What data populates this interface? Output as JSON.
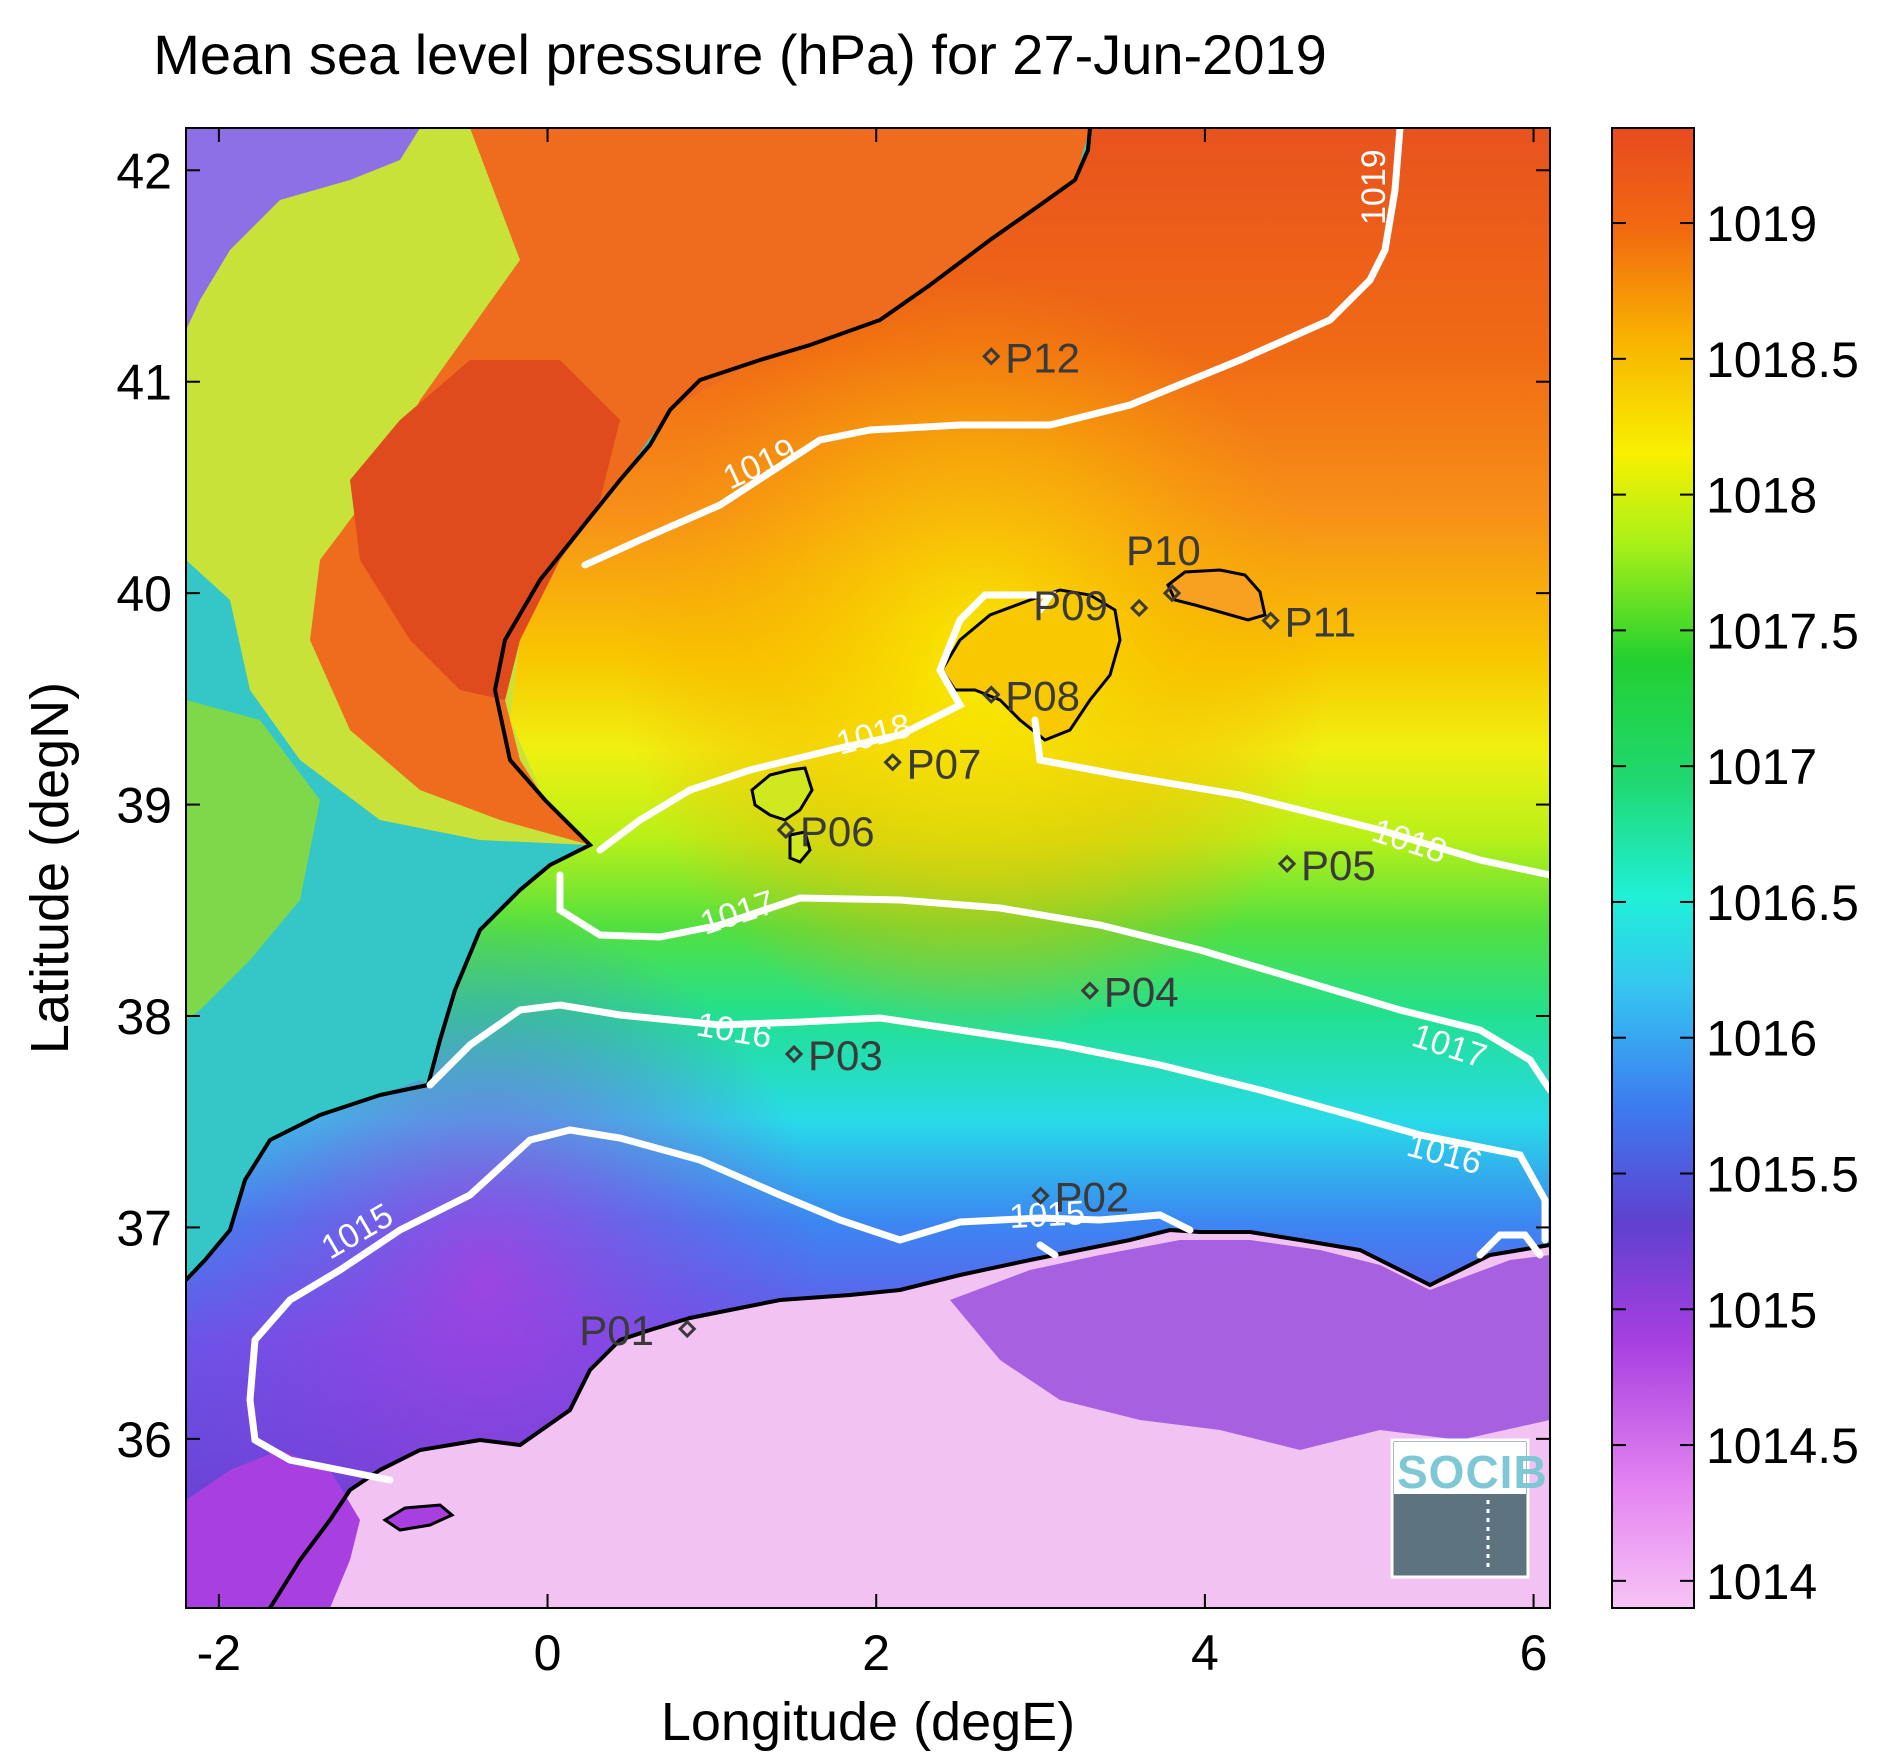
{
  "title": "Mean sea level pressure (hPa) for 27-Jun-2019",
  "chart_data": {
    "type": "heatmap",
    "title": "Mean sea level pressure (hPa) for 27-Jun-2019",
    "xlabel": "Longitude (degE)",
    "ylabel": "Latitude (degN)",
    "xlim": [
      -2.2,
      6.1
    ],
    "ylim": [
      35.2,
      42.2
    ],
    "x_ticks": [
      "-2",
      "0",
      "2",
      "4",
      "6"
    ],
    "y_ticks": [
      "36",
      "37",
      "38",
      "39",
      "40",
      "41",
      "42"
    ],
    "colorbar": {
      "range": [
        1013.9,
        1019.35
      ],
      "ticks": [
        "1014",
        "1014.5",
        "1015",
        "1015.5",
        "1016",
        "1016.5",
        "1017",
        "1017.5",
        "1018",
        "1018.5",
        "1019"
      ]
    },
    "contours": [
      {
        "level": "1015",
        "label": "1015"
      },
      {
        "level": "1016",
        "label": "1016"
      },
      {
        "level": "1017",
        "label": "1017"
      },
      {
        "level": "1018",
        "label": "1018"
      },
      {
        "level": "1019",
        "label": "1019"
      }
    ],
    "stations": [
      {
        "name": "P01",
        "lon": 0.85,
        "lat": 36.52
      },
      {
        "name": "P02",
        "lon": 3.0,
        "lat": 37.15
      },
      {
        "name": "P03",
        "lon": 1.5,
        "lat": 37.82
      },
      {
        "name": "P04",
        "lon": 3.3,
        "lat": 38.12
      },
      {
        "name": "P05",
        "lon": 4.5,
        "lat": 38.72
      },
      {
        "name": "P06",
        "lon": 1.45,
        "lat": 38.88
      },
      {
        "name": "P07",
        "lon": 2.1,
        "lat": 39.2
      },
      {
        "name": "P08",
        "lon": 2.7,
        "lat": 39.52
      },
      {
        "name": "P09",
        "lon": 3.6,
        "lat": 39.93
      },
      {
        "name": "P10",
        "lon": 3.8,
        "lat": 40.0
      },
      {
        "name": "P11",
        "lon": 4.4,
        "lat": 39.87
      },
      {
        "name": "P12",
        "lon": 2.7,
        "lat": 41.12
      }
    ]
  },
  "logo": {
    "text": "SOCIB"
  },
  "colors": {
    "coast": "#000000",
    "contour": "#ffffff",
    "station": "#3a3a3a"
  }
}
